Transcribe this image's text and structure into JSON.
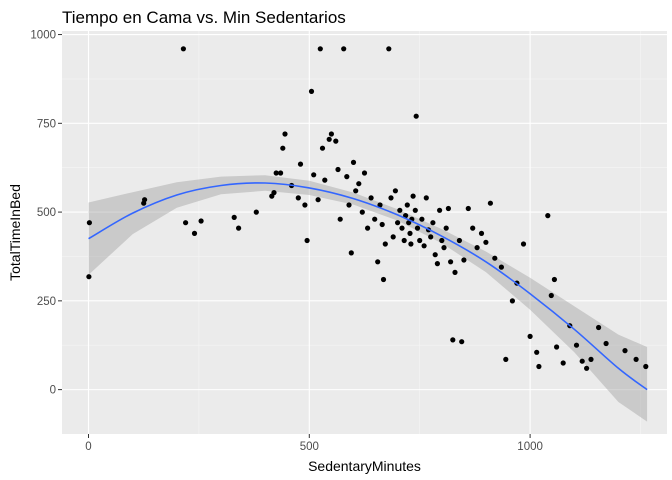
{
  "chart_data": {
    "type": "scatter",
    "title": "Tiempo en Cama vs. Min Sedentarios",
    "xlabel": "SedentaryMinutes",
    "ylabel": "TotalTimeInBed",
    "xlim": [
      -60,
      1310
    ],
    "ylim": [
      -125,
      1010
    ],
    "x_ticks": [
      0,
      500,
      1000
    ],
    "x_tick_labels": [
      "0",
      "500",
      "1000"
    ],
    "y_ticks": [
      0,
      250,
      500,
      750,
      1000
    ],
    "y_tick_labels": [
      "0",
      "250",
      "500",
      "750",
      "1000"
    ],
    "grid": true,
    "legend": "none",
    "colors": {
      "panel": "#ebebeb",
      "grid_major": "#ffffff",
      "grid_minor": "#f5f5f5",
      "points": "#000000",
      "smooth_line": "#3366ff",
      "confidence_band": "#999999"
    },
    "points": [
      [
        2,
        470
      ],
      [
        1,
        318
      ],
      [
        125,
        525
      ],
      [
        127,
        535
      ],
      [
        215,
        960
      ],
      [
        220,
        470
      ],
      [
        240,
        440
      ],
      [
        255,
        475
      ],
      [
        330,
        485
      ],
      [
        340,
        455
      ],
      [
        380,
        500
      ],
      [
        415,
        545
      ],
      [
        420,
        555
      ],
      [
        425,
        610
      ],
      [
        435,
        610
      ],
      [
        440,
        680
      ],
      [
        445,
        720
      ],
      [
        460,
        575
      ],
      [
        475,
        540
      ],
      [
        480,
        635
      ],
      [
        490,
        520
      ],
      [
        495,
        420
      ],
      [
        505,
        840
      ],
      [
        510,
        605
      ],
      [
        520,
        535
      ],
      [
        525,
        960
      ],
      [
        530,
        680
      ],
      [
        535,
        590
      ],
      [
        545,
        705
      ],
      [
        550,
        720
      ],
      [
        560,
        700
      ],
      [
        565,
        620
      ],
      [
        570,
        480
      ],
      [
        578,
        960
      ],
      [
        585,
        600
      ],
      [
        590,
        520
      ],
      [
        595,
        385
      ],
      [
        600,
        640
      ],
      [
        605,
        560
      ],
      [
        612,
        580
      ],
      [
        620,
        500
      ],
      [
        625,
        610
      ],
      [
        632,
        455
      ],
      [
        640,
        540
      ],
      [
        648,
        480
      ],
      [
        655,
        360
      ],
      [
        660,
        520
      ],
      [
        665,
        465
      ],
      [
        668,
        310
      ],
      [
        672,
        410
      ],
      [
        680,
        960
      ],
      [
        685,
        540
      ],
      [
        690,
        430
      ],
      [
        695,
        560
      ],
      [
        700,
        470
      ],
      [
        705,
        505
      ],
      [
        710,
        455
      ],
      [
        715,
        420
      ],
      [
        718,
        490
      ],
      [
        722,
        520
      ],
      [
        725,
        470
      ],
      [
        728,
        440
      ],
      [
        730,
        410
      ],
      [
        732,
        480
      ],
      [
        735,
        545
      ],
      [
        740,
        505
      ],
      [
        742,
        770
      ],
      [
        745,
        455
      ],
      [
        750,
        420
      ],
      [
        755,
        480
      ],
      [
        760,
        405
      ],
      [
        765,
        540
      ],
      [
        770,
        450
      ],
      [
        775,
        430
      ],
      [
        780,
        470
      ],
      [
        785,
        380
      ],
      [
        790,
        355
      ],
      [
        795,
        505
      ],
      [
        800,
        420
      ],
      [
        805,
        400
      ],
      [
        810,
        455
      ],
      [
        815,
        510
      ],
      [
        820,
        360
      ],
      [
        825,
        140
      ],
      [
        830,
        330
      ],
      [
        840,
        420
      ],
      [
        845,
        135
      ],
      [
        850,
        365
      ],
      [
        860,
        510
      ],
      [
        870,
        455
      ],
      [
        880,
        400
      ],
      [
        890,
        440
      ],
      [
        900,
        415
      ],
      [
        910,
        525
      ],
      [
        920,
        370
      ],
      [
        935,
        345
      ],
      [
        945,
        85
      ],
      [
        960,
        250
      ],
      [
        970,
        300
      ],
      [
        985,
        410
      ],
      [
        1000,
        150
      ],
      [
        1015,
        105
      ],
      [
        1020,
        65
      ],
      [
        1040,
        490
      ],
      [
        1048,
        265
      ],
      [
        1055,
        310
      ],
      [
        1060,
        120
      ],
      [
        1075,
        75
      ],
      [
        1090,
        180
      ],
      [
        1105,
        125
      ],
      [
        1118,
        80
      ],
      [
        1128,
        60
      ],
      [
        1138,
        85
      ],
      [
        1155,
        175
      ],
      [
        1172,
        130
      ],
      [
        1215,
        110
      ],
      [
        1240,
        85
      ],
      [
        1262,
        65
      ]
    ],
    "smooth": {
      "x": [
        0,
        100,
        200,
        300,
        400,
        500,
        600,
        700,
        800,
        900,
        1000,
        1100,
        1200,
        1265
      ],
      "y": [
        425,
        497,
        548,
        575,
        582,
        568,
        538,
        492,
        432,
        360,
        270,
        170,
        60,
        0
      ],
      "ci_upper": [
        527,
        556,
        584,
        600,
        604,
        588,
        555,
        508,
        452,
        389,
        315,
        235,
        155,
        120
      ],
      "ci_lower": [
        323,
        438,
        512,
        550,
        560,
        548,
        521,
        476,
        412,
        331,
        225,
        105,
        -35,
        -90
      ]
    }
  }
}
